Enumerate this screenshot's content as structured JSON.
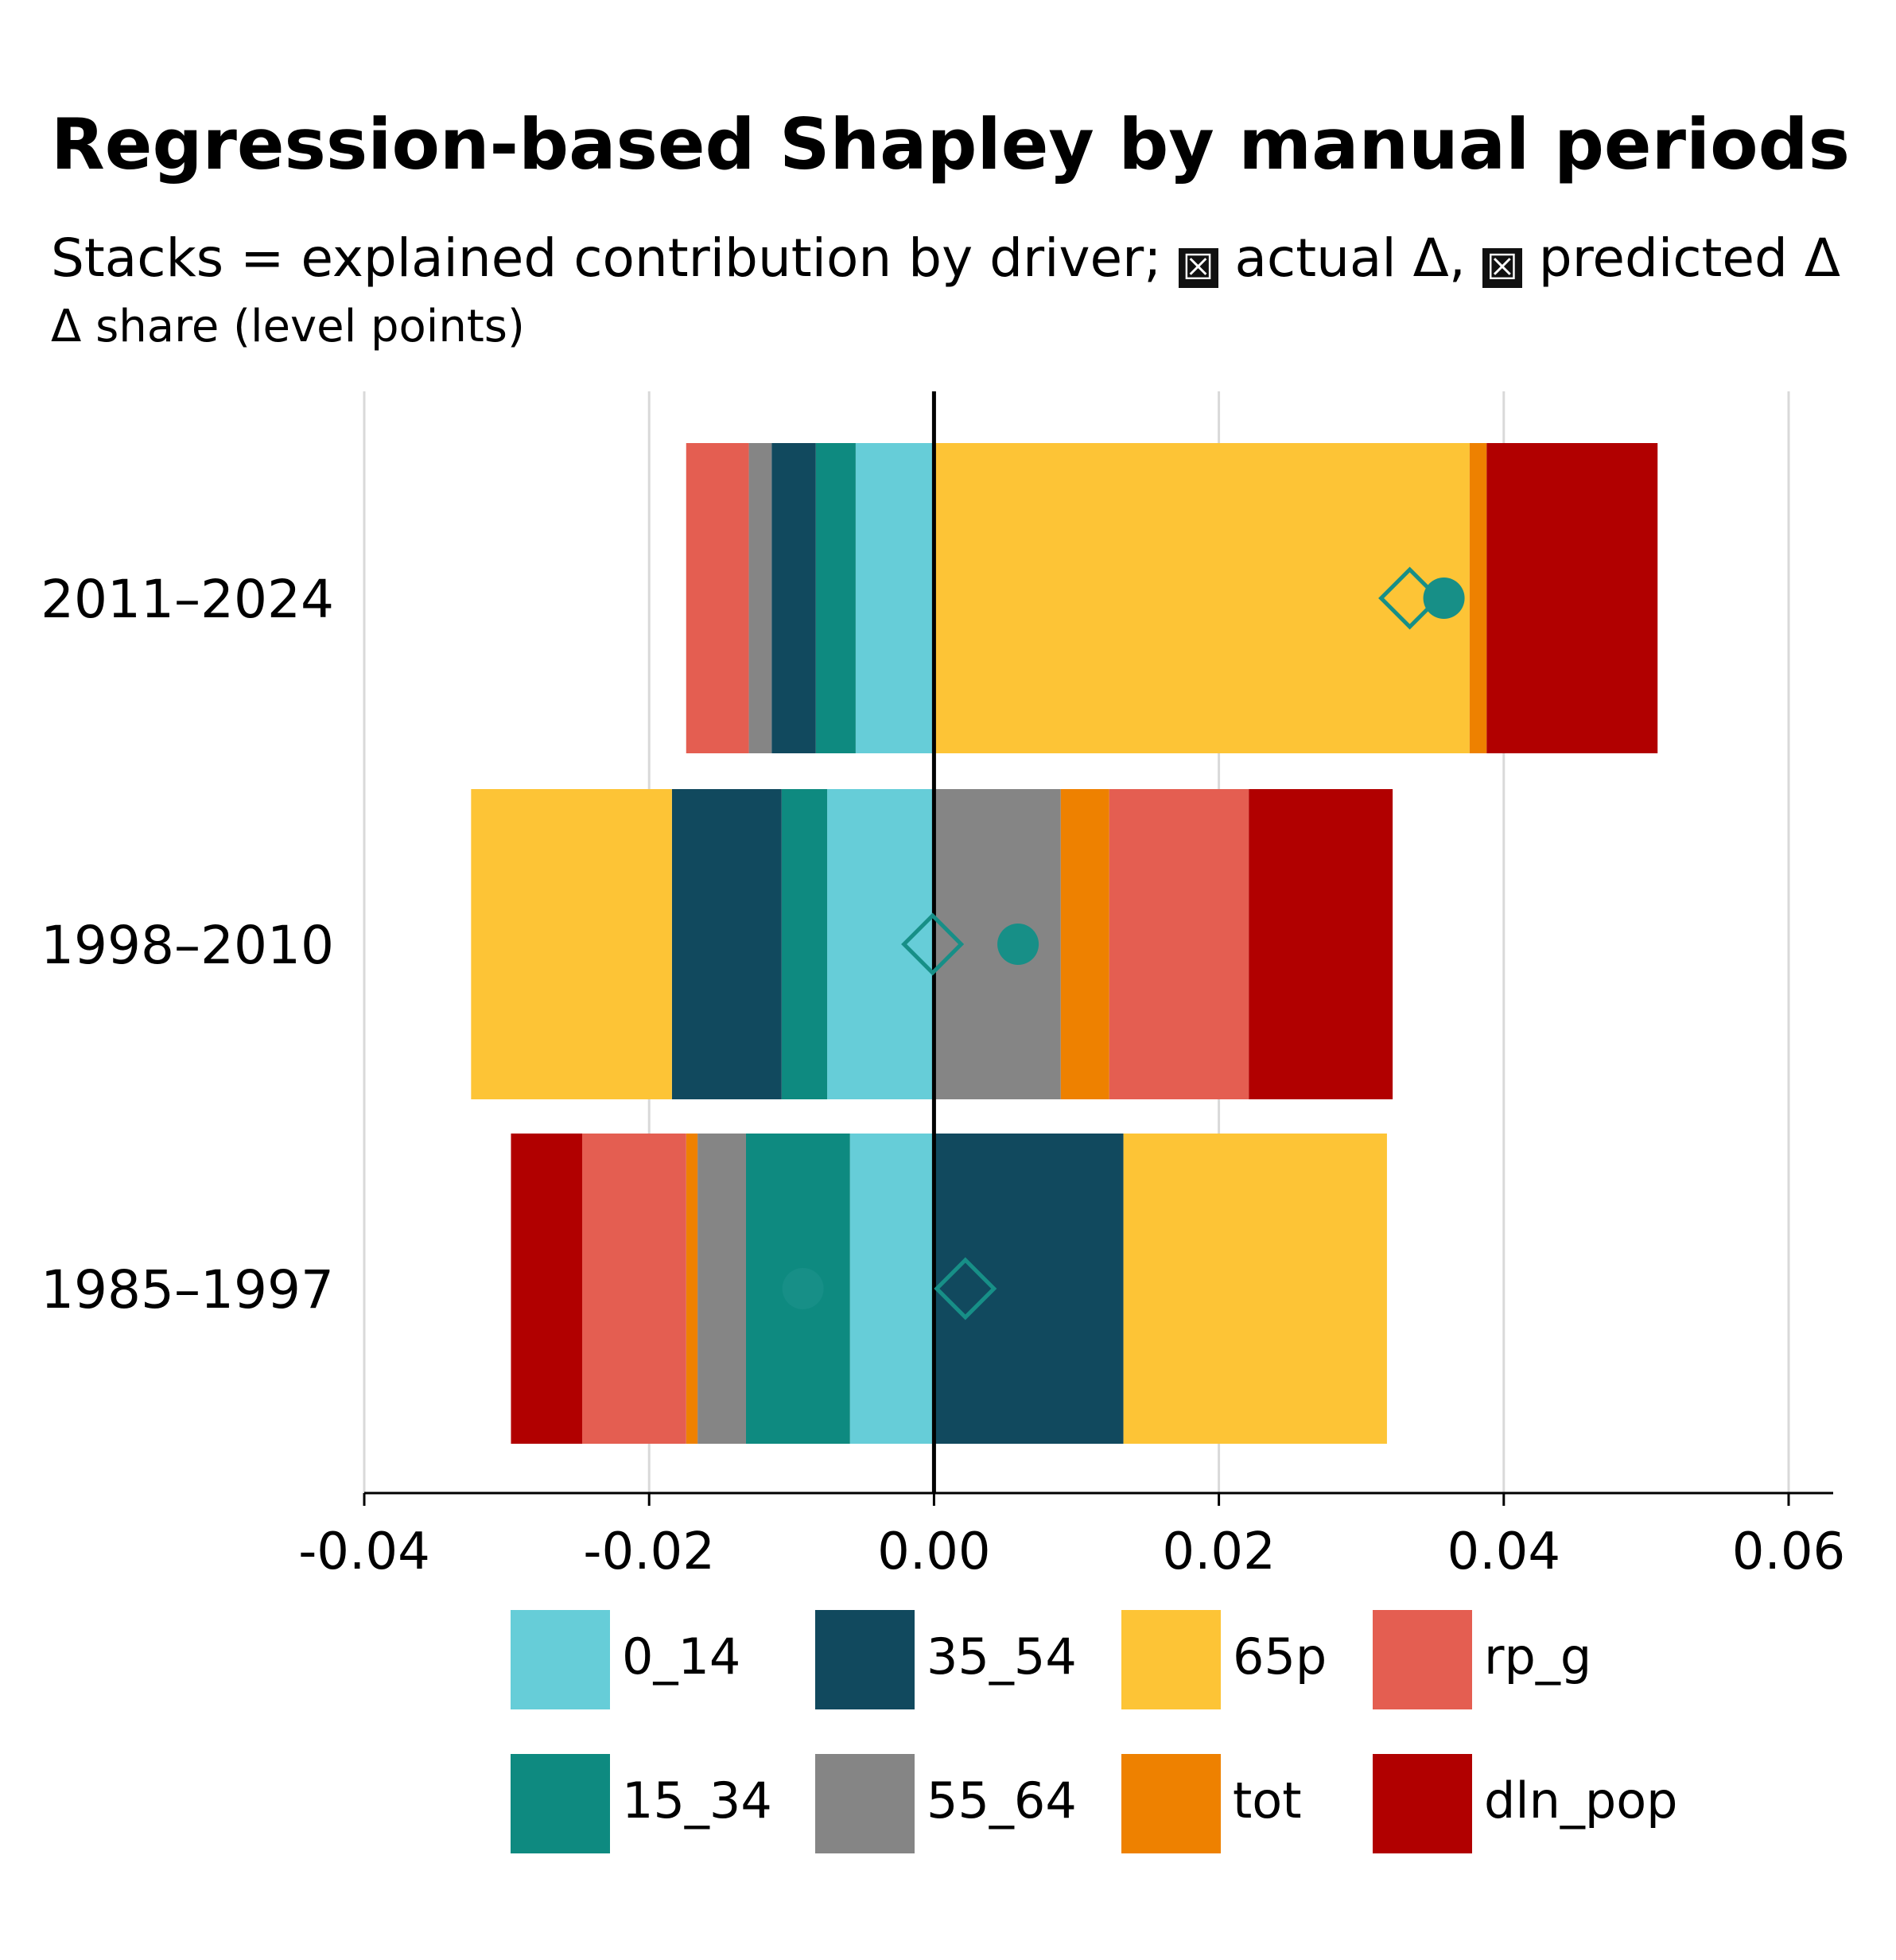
{
  "title": "Regression-based Shapley by manual periods",
  "subtitle": {
    "prefix": "Stacks = explained contribution by driver;",
    "mark": "☒",
    "actual": "actual Δ,",
    "predicted": "predicted Δ"
  },
  "colors": {
    "0_14": "#66cdd8",
    "15_34": "#0e8a80",
    "35_54": "#11495e",
    "55_64": "#858585",
    "65p": "#fdc436",
    "tot": "#ee8100",
    "rp_g": "#e45e51",
    "dln_pop": "#b10000",
    "marker": "#178f87"
  },
  "legend": [
    {
      "key": "0_14",
      "label": "0_14"
    },
    {
      "key": "35_54",
      "label": "35_54"
    },
    {
      "key": "65p",
      "label": "65p"
    },
    {
      "key": "rp_g",
      "label": "rp_g"
    },
    {
      "key": "15_34",
      "label": "15_34"
    },
    {
      "key": "55_64",
      "label": "55_64"
    },
    {
      "key": "tot",
      "label": "tot"
    },
    {
      "key": "dln_pop",
      "label": "dln_pop"
    }
  ],
  "chart_data": {
    "type": "bar",
    "orientation": "horizontal",
    "stacked": true,
    "title": "Regression-based Shapley by manual periods",
    "xlabel": "Δ share (level points)",
    "ylabel": "",
    "xlim": [
      -0.04,
      0.063
    ],
    "xticks": [
      -0.04,
      -0.02,
      0.0,
      0.02,
      0.04,
      0.06
    ],
    "xtick_labels": [
      "-0.04",
      "-0.02",
      "0.00",
      "0.02",
      "0.04",
      "0.06"
    ],
    "categories": [
      "2011–2024",
      "1998–2010",
      "1985–1997"
    ],
    "grid": "vertical",
    "legend_position": "bottom",
    "series": [
      {
        "name": "0_14",
        "values": [
          -0.0055,
          -0.0075,
          -0.0059
        ]
      },
      {
        "name": "15_34",
        "values": [
          -0.0028,
          -0.0032,
          -0.0073
        ]
      },
      {
        "name": "35_54",
        "values": [
          -0.0031,
          -0.0077,
          0.0133
        ]
      },
      {
        "name": "55_64",
        "values": [
          -0.0016,
          0.0089,
          -0.0034
        ]
      },
      {
        "name": "65p",
        "values": [
          0.0376,
          -0.0141,
          0.0185
        ]
      },
      {
        "name": "tot",
        "values": [
          0.0012,
          0.0034,
          -0.0008
        ]
      },
      {
        "name": "rp_g",
        "values": [
          -0.0044,
          0.0098,
          -0.0073
        ]
      },
      {
        "name": "dln_pop",
        "values": [
          0.012,
          0.0101,
          -0.005
        ]
      }
    ],
    "actual": [
      0.0358,
      0.0059,
      -0.0092
    ],
    "predicted": [
      0.0334,
      -0.0001,
      0.0022
    ]
  }
}
